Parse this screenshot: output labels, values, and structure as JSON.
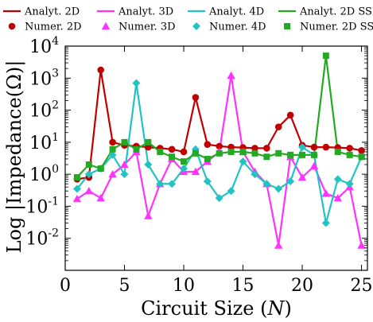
{
  "chart_data": {
    "type": "line",
    "xlabel": "Circuit Size (N)",
    "ylabel": "Log |Impedance(Ω)|",
    "xlim": [
      0,
      25.5
    ],
    "ylim": [
      0.001,
      10000
    ],
    "y_scale": "log",
    "grid": false,
    "legend_placement": "top, outside plot (2 rows)",
    "x_ticks": [
      0,
      5,
      10,
      15,
      20,
      25
    ],
    "y_ticks": [
      {
        "base": "10",
        "exp": "4",
        "value": 10000
      },
      {
        "base": "10",
        "exp": "3",
        "value": 1000
      },
      {
        "base": "10",
        "exp": "2",
        "value": 100
      },
      {
        "base": "10",
        "exp": "1",
        "value": 10
      },
      {
        "base": "10",
        "exp": "0",
        "value": 1
      },
      {
        "base": "10",
        "exp": "-1",
        "value": 0.1
      },
      {
        "base": "10",
        "exp": "-2",
        "value": 0.01
      }
    ],
    "x": [
      1,
      2,
      3,
      4,
      5,
      6,
      7,
      8,
      9,
      10,
      11,
      12,
      13,
      14,
      15,
      16,
      17,
      18,
      19,
      20,
      21,
      22,
      23,
      24,
      25
    ],
    "series": [
      {
        "name": "Analyt. 2D",
        "kind": "line",
        "color": "#c00000",
        "values": [
          0.7,
          0.8,
          1800,
          10,
          8,
          7.5,
          7,
          6.5,
          6,
          5,
          250,
          8.5,
          7.5,
          7,
          6.8,
          6.5,
          6.5,
          30,
          70,
          8,
          7,
          7,
          6.8,
          6.5,
          5.5
        ]
      },
      {
        "name": "Numer. 2D",
        "kind": "marker",
        "marker": "circle",
        "color": "#c00000",
        "values": [
          0.7,
          0.8,
          1800,
          10,
          8,
          7.5,
          7,
          6.5,
          6,
          5,
          250,
          8.5,
          7.5,
          7,
          6.8,
          6.5,
          6.5,
          30,
          70,
          8,
          7,
          7,
          6.8,
          6.5,
          5.5
        ]
      },
      {
        "name": "Analyt. 3D",
        "kind": "line",
        "color": "#ff33ff",
        "values": [
          0.17,
          0.3,
          0.18,
          1,
          2,
          5,
          0.05,
          0.5,
          3,
          1.2,
          1.2,
          2.5,
          5,
          1200,
          5,
          1.2,
          0.5,
          0.006,
          3.5,
          0.8,
          1.8,
          0.25,
          0.18,
          0.4,
          0.006
        ]
      },
      {
        "name": "Numer. 3D",
        "kind": "marker",
        "marker": "triangle",
        "color": "#ff33ff",
        "values": [
          0.17,
          0.3,
          0.18,
          1,
          2,
          5,
          0.05,
          0.5,
          3,
          1.2,
          1.2,
          2.5,
          5,
          1200,
          5,
          1.2,
          0.5,
          0.006,
          3.5,
          0.8,
          1.8,
          0.25,
          0.18,
          0.4,
          0.006
        ]
      },
      {
        "name": "Analyt. 4D",
        "kind": "line",
        "color": "#22c3c3",
        "values": [
          0.35,
          1,
          1.5,
          4,
          1,
          700,
          2,
          0.5,
          0.5,
          1.5,
          6,
          0.6,
          0.18,
          0.3,
          2.5,
          1,
          0.5,
          0.35,
          0.6,
          7,
          4,
          0.03,
          0.7,
          0.5,
          3.5
        ]
      },
      {
        "name": "Numer. 4D",
        "kind": "marker",
        "marker": "diamond",
        "color": "#22c3c3",
        "values": [
          0.35,
          1,
          1.5,
          4,
          1,
          700,
          2,
          0.5,
          0.5,
          1.5,
          6,
          0.6,
          0.18,
          0.3,
          2.5,
          1,
          0.5,
          0.35,
          0.6,
          7,
          4,
          0.03,
          0.7,
          0.5,
          3.5
        ]
      },
      {
        "name": "Analyt. 2D SSH",
        "kind": "line",
        "color": "#22aa22",
        "values": [
          0.8,
          2,
          1.5,
          6,
          10,
          6,
          10,
          5,
          3.5,
          2.5,
          4.5,
          3,
          4.5,
          5,
          5,
          4.5,
          3.5,
          4.5,
          4,
          4,
          4,
          5000,
          5,
          4,
          3.5
        ]
      },
      {
        "name": "Numer. 2D SSH",
        "kind": "marker",
        "marker": "square",
        "color": "#22aa22",
        "values": [
          0.8,
          2,
          1.5,
          6,
          10,
          6,
          10,
          5,
          3.5,
          2.5,
          4.5,
          3,
          4.5,
          5,
          5,
          4.5,
          3.5,
          4.5,
          4,
          4,
          4,
          5000,
          5,
          4,
          3.5
        ]
      }
    ]
  }
}
